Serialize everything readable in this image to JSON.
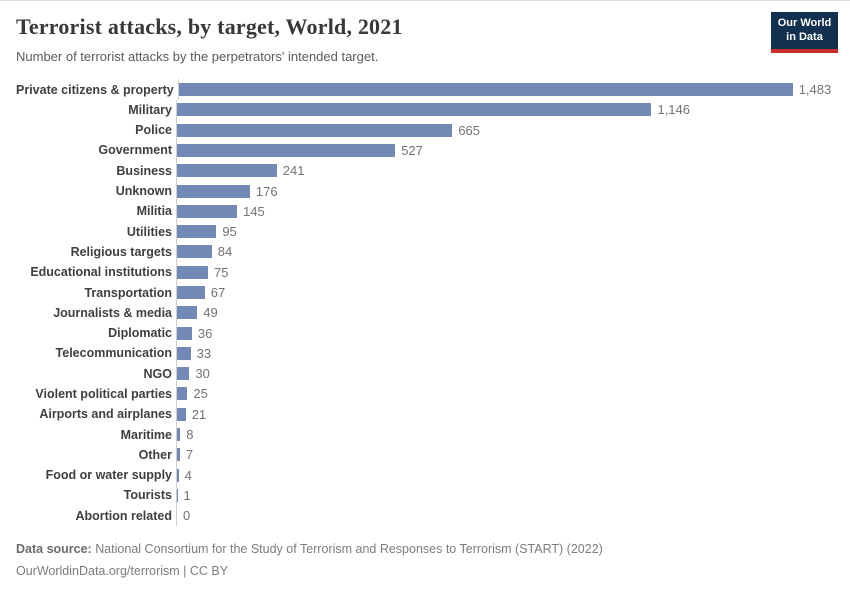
{
  "header": {
    "logo": {
      "line1": "Our World",
      "line2": "in Data"
    }
  },
  "chart_data": {
    "type": "bar",
    "orientation": "horizontal",
    "title": "Terrorist attacks, by target, World, 2021",
    "subtitle": "Number of terrorist attacks by the perpetrators' intended target.",
    "categories": [
      "Private citizens & property",
      "Military",
      "Police",
      "Government",
      "Business",
      "Unknown",
      "Militia",
      "Utilities",
      "Religious targets",
      "Educational institutions",
      "Transportation",
      "Journalists & media",
      "Diplomatic",
      "Telecommunication",
      "NGO",
      "Violent political parties",
      "Airports and airplanes",
      "Maritime",
      "Other",
      "Food or water supply",
      "Tourists",
      "Abortion related"
    ],
    "values": [
      1483,
      1146,
      665,
      527,
      241,
      176,
      145,
      95,
      84,
      75,
      67,
      49,
      36,
      33,
      30,
      25,
      21,
      8,
      7,
      4,
      1,
      0
    ],
    "value_labels": [
      "1,483",
      "1,146",
      "665",
      "527",
      "241",
      "176",
      "145",
      "95",
      "84",
      "75",
      "67",
      "49",
      "36",
      "33",
      "30",
      "25",
      "21",
      "8",
      "7",
      "4",
      "1",
      "0"
    ],
    "xlabel": "",
    "ylabel": "",
    "xlim": [
      0,
      1483
    ],
    "grid": false,
    "legend": false
  },
  "footer": {
    "source_label": "Data source:",
    "source_text": " National Consortium for the Study of Terrorism and Responses to Terrorism (START) (2022)",
    "url": "OurWorldinData.org/terrorism",
    "separator": " | ",
    "license": "CC BY"
  },
  "colors": {
    "bar": "#7189b4",
    "axis_line": "#cfcfcf",
    "logo_background": "#12304f",
    "logo_underline": "#c5302b",
    "title_text": "#383838",
    "value_text": "#737373"
  }
}
